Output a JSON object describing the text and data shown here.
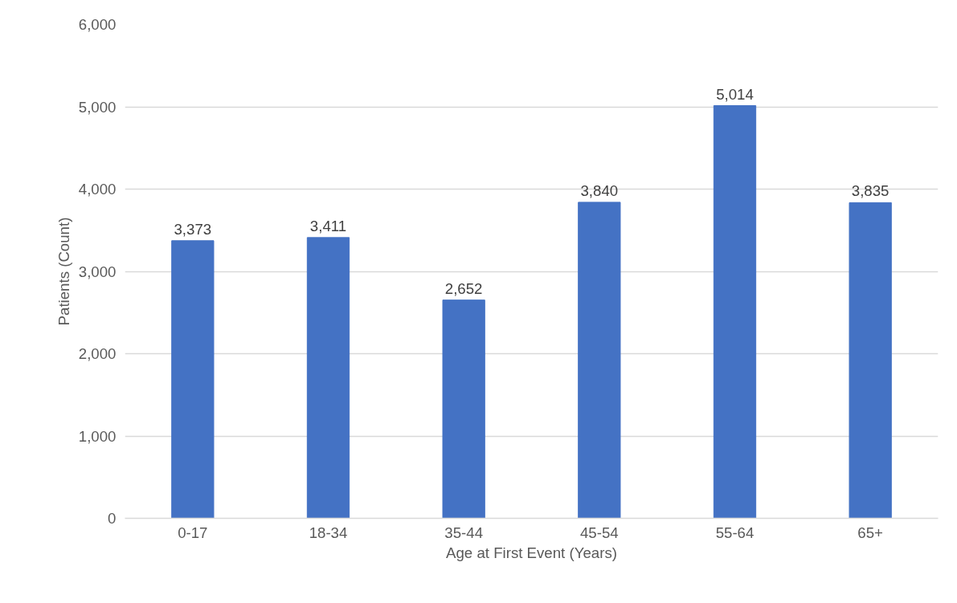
{
  "chart_data": {
    "type": "bar",
    "xlabel": "Age at First Event (Years)",
    "ylabel": "Patients (Count)",
    "categories": [
      "0-17",
      "18-34",
      "35-44",
      "45-54",
      "55-64",
      "65+"
    ],
    "values": [
      3373,
      3411,
      2652,
      3840,
      5014,
      3835
    ],
    "color": "#4472c4",
    "ylim": [
      0,
      6000
    ],
    "yticks": [
      {
        "value": 0,
        "label": "0"
      },
      {
        "value": 1000,
        "label": "1,000"
      },
      {
        "value": 2000,
        "label": "2,000"
      },
      {
        "value": 3000,
        "label": "3,000"
      },
      {
        "value": 4000,
        "label": "4,000"
      },
      {
        "value": 5000,
        "label": "5,000"
      },
      {
        "value": 6000,
        "label": "6,000"
      }
    ],
    "value_labels": [
      "3,373",
      "3,411",
      "2,652",
      "3,840",
      "5,014",
      "3,835"
    ],
    "grid": "y"
  }
}
